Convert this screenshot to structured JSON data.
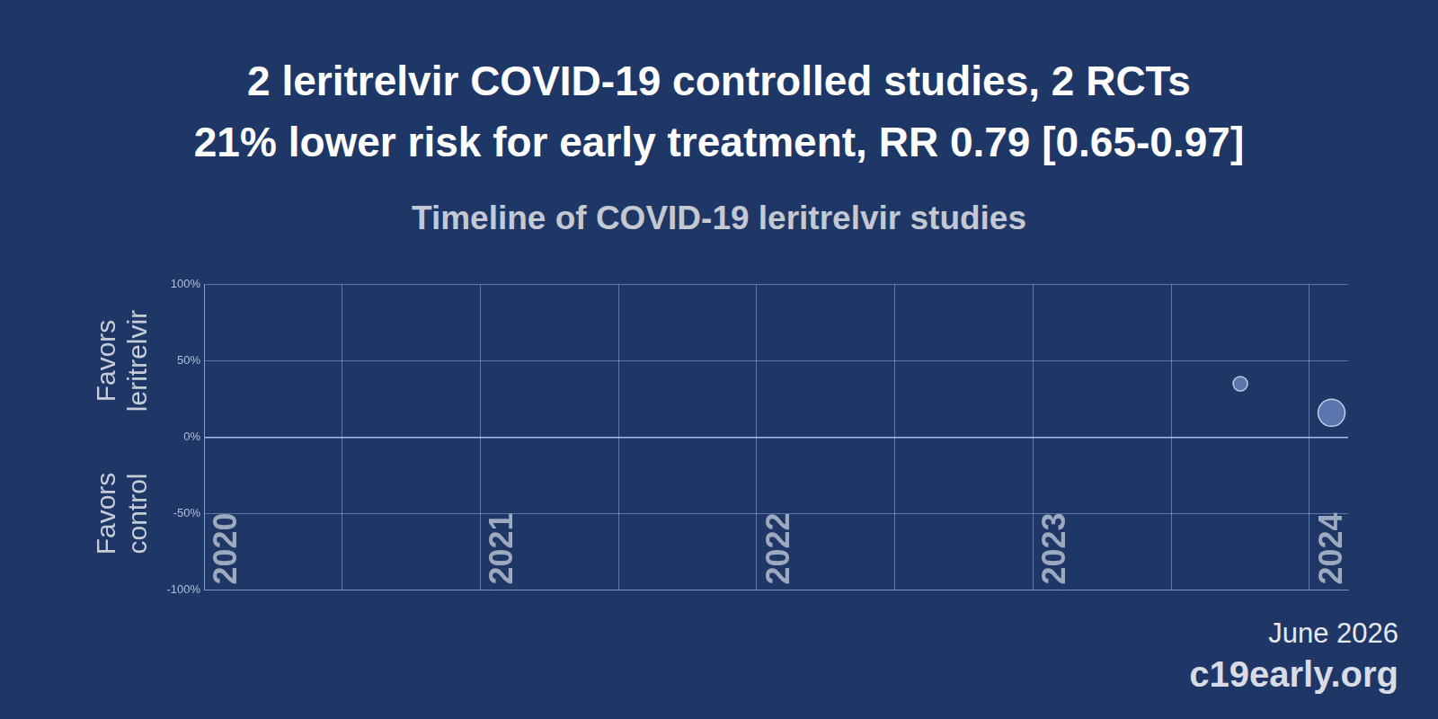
{
  "chart_data": {
    "type": "bubble",
    "title": [
      "2 leritrelvir COVID-19 controlled studies, 2 RCTs",
      "21% lower risk for early treatment, RR 0.79 [0.65-0.97]"
    ],
    "subtitle": "Timeline of COVID-19 leritrelvir studies",
    "y_axis_labels": [
      "Favors leritrelvir",
      "Favors control"
    ],
    "annotations": [
      "June 2026",
      "c19early.org"
    ],
    "x": [
      2023.75,
      2024.08
    ],
    "values": [
      35,
      16
    ],
    "sizes": [
      8,
      15
    ],
    "color": "#5b75ae",
    "xlim": [
      2020,
      2024.14
    ],
    "xticks": [
      2020,
      2021,
      2022,
      2023,
      2024
    ],
    "ylim": [
      -100,
      100
    ],
    "yticks": [
      {
        "value": -100,
        "label": "-100%"
      },
      {
        "value": -50,
        "label": "-50%"
      },
      {
        "value": 0,
        "label": "0%"
      },
      {
        "value": 50,
        "label": "50%"
      },
      {
        "value": 100,
        "label": "100%"
      }
    ],
    "grid": true
  }
}
